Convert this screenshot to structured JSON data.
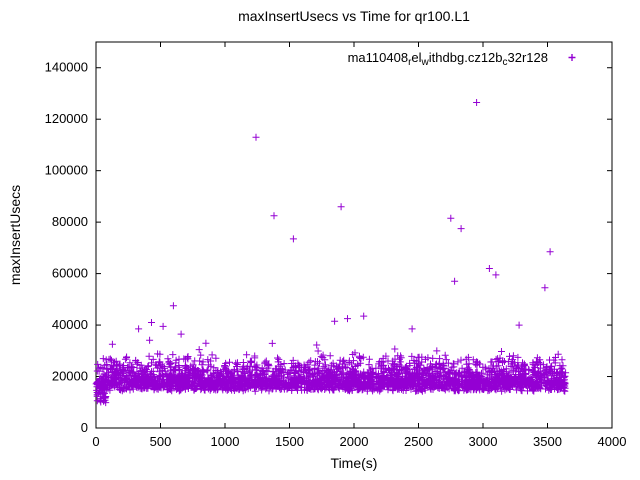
{
  "chart_data": {
    "type": "scatter",
    "title": "maxInsertUsecs vs Time for qr100.L1",
    "xlabel": "Time(s)",
    "ylabel": "maxInsertUsecs",
    "xlim": [
      0,
      4000
    ],
    "ylim": [
      0,
      150000
    ],
    "xticks": [
      0,
      500,
      1000,
      1500,
      2000,
      2500,
      3000,
      3500,
      4000
    ],
    "yticks": [
      0,
      20000,
      40000,
      60000,
      80000,
      100000,
      120000,
      140000
    ],
    "grid": false,
    "legend_position": "top-right-inside",
    "marker": {
      "shape": "plus",
      "color": "#9400D3",
      "size": 7
    },
    "series": [
      {
        "name": "ma110408_rel_withdbg.cz12b_c32r128",
        "label_segments": [
          {
            "text": "ma110408"
          },
          {
            "text": "r",
            "sub": true
          },
          {
            "text": "el"
          },
          {
            "text": "w",
            "sub": true
          },
          {
            "text": "ithdbg.cz12b"
          },
          {
            "text": "c",
            "sub": true
          },
          {
            "text": "32r128"
          }
        ],
        "band_summary": "dense cloud of samples between ~14000 and ~33000 usecs spanning time 0-3650s, lower tail near 10000 at t<80s",
        "synthetic_band": {
          "seed": 42,
          "count": 3000,
          "x_min": 5,
          "x_max": 3640,
          "y_base": 14200,
          "y_skew_range": 12500,
          "y_jitter": 3200,
          "spike_prob": 0.05,
          "spike_max": 8500,
          "early_tail": {
            "count": 45,
            "x_max": 80,
            "y_min": 9800,
            "y_max": 18500
          }
        },
        "outliers": [
          [
            330,
            38500
          ],
          [
            430,
            41000
          ],
          [
            520,
            39500
          ],
          [
            600,
            47500
          ],
          [
            660,
            36500
          ],
          [
            1240,
            113000
          ],
          [
            1380,
            82500
          ],
          [
            1530,
            73500
          ],
          [
            1850,
            41500
          ],
          [
            1900,
            86000
          ],
          [
            1950,
            42500
          ],
          [
            2075,
            43500
          ],
          [
            2450,
            38500
          ],
          [
            2750,
            81500
          ],
          [
            2780,
            57000
          ],
          [
            2830,
            77500
          ],
          [
            2950,
            126500
          ],
          [
            3050,
            62000
          ],
          [
            3100,
            59500
          ],
          [
            3280,
            40000
          ],
          [
            3480,
            54500
          ],
          [
            3520,
            68500
          ]
        ]
      }
    ]
  }
}
